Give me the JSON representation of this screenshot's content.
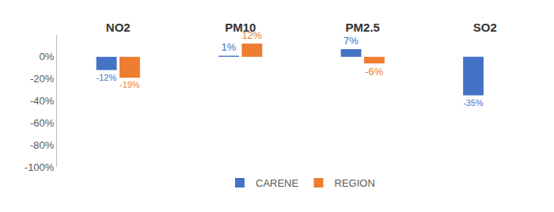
{
  "chart_data": {
    "type": "bar",
    "categories": [
      "NO2",
      "PM10",
      "PM2.5",
      "SO2"
    ],
    "series": [
      {
        "name": "CARENE",
        "color": "#4472c4",
        "values": [
          -12,
          1,
          7,
          -35
        ],
        "value_labels": [
          "-12%",
          "1%",
          "7%",
          "-35%"
        ]
      },
      {
        "name": "REGION",
        "color": "#ed7d31",
        "values": [
          -19,
          12,
          -6,
          null
        ],
        "value_labels": [
          "-19%",
          "12%",
          "-6%",
          null
        ]
      }
    ],
    "ylim": [
      -100,
      20
    ],
    "yticks": [
      {
        "value": -100,
        "label": "-100%"
      },
      {
        "value": -80,
        "label": "-80%"
      },
      {
        "value": -60,
        "label": "-60%"
      },
      {
        "value": -40,
        "label": "-40%"
      },
      {
        "value": -20,
        "label": "-20%"
      },
      {
        "value": 0,
        "label": "0%"
      }
    ],
    "grid": false,
    "legend": "bottom",
    "data_labels": true
  }
}
